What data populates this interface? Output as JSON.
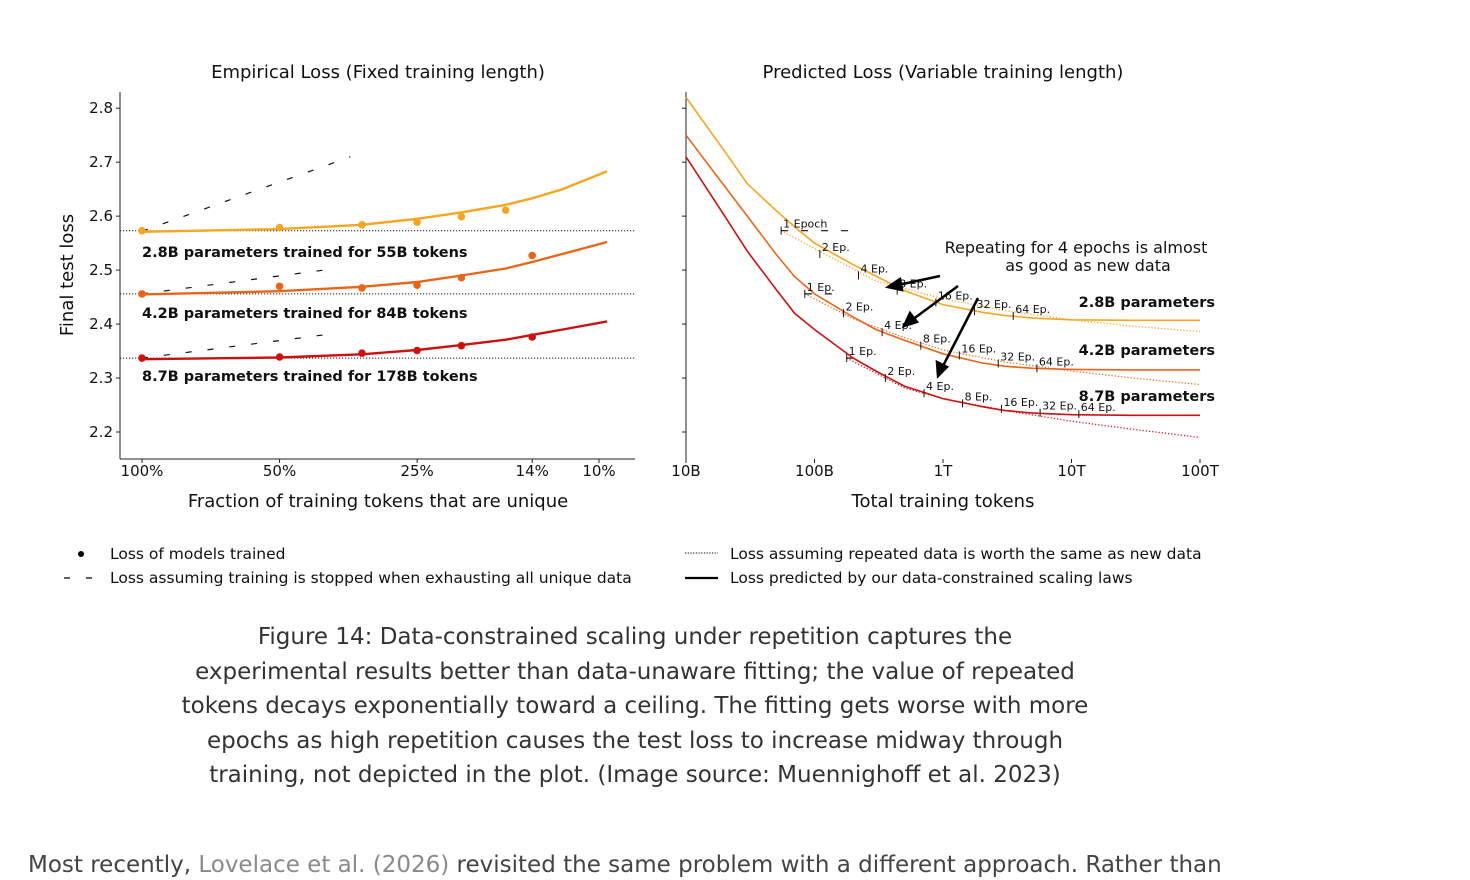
{
  "chart_data": [
    {
      "type": "scatter",
      "title": "Empirical Loss (Fixed training length)",
      "xlabel": "Fraction of training tokens that are unique",
      "ylabel": "Final test loss",
      "x_tick_labels": [
        "100%",
        "50%",
        "25%",
        "14%",
        "10%"
      ],
      "x_tick_values": [
        1.0,
        0.5,
        0.25,
        0.14,
        0.1
      ],
      "x_scale": "log (reversed)",
      "ylim": [
        2.15,
        2.83
      ],
      "y_ticks": [
        2.2,
        2.3,
        2.4,
        2.5,
        2.6,
        2.7,
        2.8
      ],
      "grid": false,
      "series": [
        {
          "name": "2.8B parameters trained for 55B tokens",
          "color": "#f5a623",
          "unique_data_loss": 2.573,
          "points": [
            [
              1.0,
              2.573
            ],
            [
              0.5,
              2.579
            ],
            [
              0.33,
              2.584
            ],
            [
              0.25,
              2.589
            ],
            [
              0.2,
              2.599
            ],
            [
              0.16,
              2.611
            ]
          ],
          "fit": [
            [
              1.0,
              2.571
            ],
            [
              0.5,
              2.576
            ],
            [
              0.33,
              2.584
            ],
            [
              0.25,
              2.595
            ],
            [
              0.2,
              2.607
            ],
            [
              0.16,
              2.621
            ],
            [
              0.14,
              2.633
            ],
            [
              0.12,
              2.65
            ],
            [
              0.096,
              2.683
            ]
          ],
          "stop_line": [
            [
              1.0,
              2.572
            ],
            [
              0.35,
              2.71
            ]
          ]
        },
        {
          "name": "4.2B parameters trained for 84B tokens",
          "color": "#e8651a",
          "unique_data_loss": 2.456,
          "points": [
            [
              1.0,
              2.456
            ],
            [
              0.5,
              2.47
            ],
            [
              0.33,
              2.467
            ],
            [
              0.25,
              2.472
            ],
            [
              0.2,
              2.486
            ],
            [
              0.14,
              2.527
            ]
          ],
          "fit": [
            [
              1.0,
              2.455
            ],
            [
              0.5,
              2.461
            ],
            [
              0.33,
              2.469
            ],
            [
              0.25,
              2.478
            ],
            [
              0.2,
              2.49
            ],
            [
              0.16,
              2.503
            ],
            [
              0.14,
              2.515
            ],
            [
              0.12,
              2.53
            ],
            [
              0.096,
              2.552
            ]
          ],
          "stop_line": [
            [
              1.0,
              2.456
            ],
            [
              0.4,
              2.5
            ]
          ]
        },
        {
          "name": "8.7B parameters trained for 178B tokens",
          "color": "#cc1111",
          "unique_data_loss": 2.337,
          "points": [
            [
              1.0,
              2.337
            ],
            [
              0.5,
              2.339
            ],
            [
              0.33,
              2.346
            ],
            [
              0.25,
              2.351
            ],
            [
              0.2,
              2.36
            ],
            [
              0.14,
              2.376
            ]
          ],
          "fit": [
            [
              1.0,
              2.335
            ],
            [
              0.5,
              2.338
            ],
            [
              0.33,
              2.344
            ],
            [
              0.25,
              2.352
            ],
            [
              0.2,
              2.361
            ],
            [
              0.16,
              2.371
            ],
            [
              0.14,
              2.38
            ],
            [
              0.12,
              2.39
            ],
            [
              0.096,
              2.405
            ]
          ],
          "stop_line": [
            [
              1.0,
              2.337
            ],
            [
              0.4,
              2.38
            ]
          ]
        }
      ]
    },
    {
      "type": "line",
      "title": "Predicted Loss (Variable training length)",
      "xlabel": "Total training tokens",
      "x_tick_labels": [
        "10B",
        "100B",
        "1T",
        "10T",
        "100T"
      ],
      "x_tick_values": [
        10000000000.0,
        100000000000.0,
        1000000000000.0,
        10000000000000.0,
        100000000000000.0
      ],
      "x_scale": "log",
      "ylim": [
        2.15,
        2.83
      ],
      "annotation": [
        "Repeating for 4 epochs is almost",
        "as good as new data"
      ],
      "series": [
        {
          "name": "2.8B parameters",
          "color": "#f5a623",
          "predicted": [
            [
              10000000000.0,
              2.82
            ],
            [
              20000000000.0,
              2.72
            ],
            [
              30000000000.0,
              2.66
            ],
            [
              50000000000.0,
              2.611
            ],
            [
              70000000000.0,
              2.58
            ],
            [
              100000000000.0,
              2.55
            ],
            [
              200000000000.0,
              2.51
            ],
            [
              300000000000.0,
              2.489
            ],
            [
              500000000000.0,
              2.462
            ],
            [
              1000000000000.0,
              2.436
            ],
            [
              2000000000000.0,
              2.422
            ],
            [
              3000000000000.0,
              2.416
            ],
            [
              5000000000000.0,
              2.411
            ],
            [
              10000000000000.0,
              2.408
            ],
            [
              30000000000000.0,
              2.407
            ],
            [
              100000000000000.0,
              2.407
            ]
          ],
          "new_data": [
            [
              55000000000.0,
              2.573
            ],
            [
              100000000000.0,
              2.54
            ],
            [
              300000000000.0,
              2.48
            ],
            [
              1000000000000.0,
              2.447
            ],
            [
              3000000000000.0,
              2.425
            ],
            [
              10000000000000.0,
              2.408
            ],
            [
              30000000000000.0,
              2.396
            ],
            [
              100000000000000.0,
              2.386
            ]
          ],
          "stop_line": [
            [
              55000000000.0,
              2.573
            ],
            [
              200000000000.0,
              2.573
            ]
          ],
          "epoch_labels": [
            {
              "label": "1 Epoch",
              "x": 55000000000.0,
              "y": 2.573
            },
            {
              "label": "2 Ep.",
              "x": 110000000000.0,
              "y": 2.53
            },
            {
              "label": "4 Ep.",
              "x": 220000000000.0,
              "y": 2.49
            },
            {
              "label": "8 Ep.",
              "x": 440000000000.0,
              "y": 2.462
            },
            {
              "label": "16 Ep.",
              "x": 880000000000.0,
              "y": 2.44
            },
            {
              "label": "32 Ep.",
              "x": 1760000000000.0,
              "y": 2.424
            },
            {
              "label": "64 Ep.",
              "x": 3520000000000.0,
              "y": 2.415
            }
          ]
        },
        {
          "name": "4.2B parameters",
          "color": "#e8651a",
          "predicted": [
            [
              10000000000.0,
              2.75
            ],
            [
              20000000000.0,
              2.655
            ],
            [
              30000000000.0,
              2.6
            ],
            [
              50000000000.0,
              2.53
            ],
            [
              70000000000.0,
              2.488
            ],
            [
              100000000000.0,
              2.456
            ],
            [
              200000000000.0,
              2.413
            ],
            [
              300000000000.0,
              2.39
            ],
            [
              500000000000.0,
              2.37
            ],
            [
              1000000000000.0,
              2.345
            ],
            [
              2000000000000.0,
              2.328
            ],
            [
              3000000000000.0,
              2.322
            ],
            [
              5000000000000.0,
              2.318
            ],
            [
              10000000000000.0,
              2.316
            ],
            [
              30000000000000.0,
              2.315
            ],
            [
              100000000000000.0,
              2.315
            ]
          ],
          "new_data": [
            [
              84000000000.0,
              2.456
            ],
            [
              200000000000.0,
              2.41
            ],
            [
              500000000000.0,
              2.375
            ],
            [
              1000000000000.0,
              2.352
            ],
            [
              3000000000000.0,
              2.33
            ],
            [
              10000000000000.0,
              2.313
            ],
            [
              30000000000000.0,
              2.3
            ],
            [
              100000000000000.0,
              2.288
            ]
          ],
          "stop_line": [
            [
              84000000000.0,
              2.456
            ],
            [
              150000000000.0,
              2.456
            ]
          ],
          "epoch_labels": [
            {
              "label": "1 Ep.",
              "x": 84000000000.0,
              "y": 2.456
            },
            {
              "label": "2 Ep.",
              "x": 168000000000.0,
              "y": 2.42
            },
            {
              "label": "4 Ep.",
              "x": 336000000000.0,
              "y": 2.385
            },
            {
              "label": "8 Ep.",
              "x": 672000000000.0,
              "y": 2.36
            },
            {
              "label": "16 Ep.",
              "x": 1340000000000.0,
              "y": 2.342
            },
            {
              "label": "32 Ep.",
              "x": 2690000000000.0,
              "y": 2.327
            },
            {
              "label": "64 Ep.",
              "x": 5380000000000.0,
              "y": 2.318
            }
          ]
        },
        {
          "name": "8.7B parameters",
          "color": "#cc1111",
          "predicted": [
            [
              10000000000.0,
              2.71
            ],
            [
              20000000000.0,
              2.6
            ],
            [
              30000000000.0,
              2.535
            ],
            [
              50000000000.0,
              2.465
            ],
            [
              70000000000.0,
              2.42
            ],
            [
              100000000000.0,
              2.39
            ],
            [
              200000000000.0,
              2.337
            ],
            [
              300000000000.0,
              2.313
            ],
            [
              500000000000.0,
              2.285
            ],
            [
              1000000000000.0,
              2.262
            ],
            [
              2000000000000.0,
              2.247
            ],
            [
              3000000000000.0,
              2.24
            ],
            [
              5000000000000.0,
              2.235
            ],
            [
              10000000000000.0,
              2.232
            ],
            [
              30000000000000.0,
              2.231
            ],
            [
              100000000000000.0,
              2.231
            ]
          ],
          "new_data": [
            [
              178000000000.0,
              2.337
            ],
            [
              500000000000.0,
              2.282
            ],
            [
              1000000000000.0,
              2.262
            ],
            [
              3000000000000.0,
              2.24
            ],
            [
              10000000000000.0,
              2.22
            ],
            [
              30000000000000.0,
              2.205
            ],
            [
              100000000000000.0,
              2.19
            ]
          ],
          "stop_line": [
            [
              178000000000.0,
              2.337
            ],
            [
              250000000000.0,
              2.337
            ]
          ],
          "epoch_labels": [
            {
              "label": "1 Ep.",
              "x": 178000000000.0,
              "y": 2.337
            },
            {
              "label": "2 Ep.",
              "x": 356000000000.0,
              "y": 2.3
            },
            {
              "label": "4 Ep.",
              "x": 712000000000.0,
              "y": 2.272
            },
            {
              "label": "8 Ep.",
              "x": 1420000000000.0,
              "y": 2.253
            },
            {
              "label": "16 Ep.",
              "x": 2850000000000.0,
              "y": 2.243
            },
            {
              "label": "32 Ep.",
              "x": 5700000000000.0,
              "y": 2.236
            },
            {
              "label": "64 Ep.",
              "x": 11400000000000.0,
              "y": 2.233
            }
          ]
        }
      ]
    }
  ],
  "legend": [
    {
      "marker": "dot",
      "label": "Loss of models trained"
    },
    {
      "marker": "dash",
      "label": "Loss assuming training is stopped when exhausting all unique data"
    },
    {
      "marker": "dotted",
      "label": "Loss assuming repeated data is worth the same as new data"
    },
    {
      "marker": "solid",
      "label": "Loss predicted by our data-constrained scaling laws"
    }
  ],
  "caption": "Figure 14: Data-constrained scaling under repetition captures the experimental results better than data-unaware fitting; the value of repeated tokens decays exponentially toward a ceiling. The fitting gets worse with more epochs as high repetition causes the test loss to increase midway through training, not depicted in the plot. (Image source: Muennighoff et al. 2023)",
  "body": {
    "prefix": "Most recently, ",
    "link": "Lovelace et al. (2026)",
    "suffix": " revisited the same problem with a different approach. Rather than"
  }
}
